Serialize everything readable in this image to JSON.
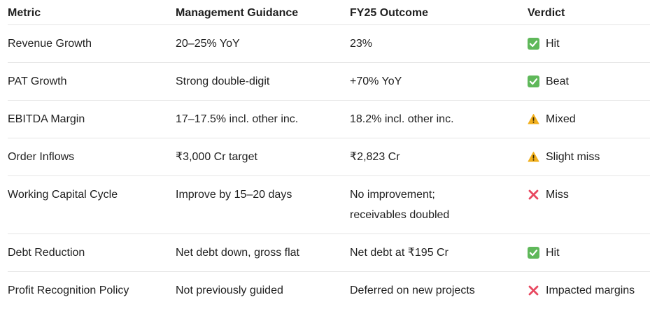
{
  "columns": [
    "Metric",
    "Management Guidance",
    "FY25 Outcome",
    "Verdict"
  ],
  "rows": [
    {
      "metric": "Revenue Growth",
      "guidance": "20–25% YoY",
      "outcome": [
        "23%"
      ],
      "verdict_icon": "check-icon",
      "verdict": "Hit"
    },
    {
      "metric": "PAT Growth",
      "guidance": "Strong double-digit",
      "outcome": [
        "+70% YoY"
      ],
      "verdict_icon": "check-icon",
      "verdict": "Beat"
    },
    {
      "metric": "EBITDA Margin",
      "guidance": "17–17.5% incl. other inc.",
      "outcome": [
        "18.2% incl. other inc."
      ],
      "verdict_icon": "warning-icon",
      "verdict": "Mixed"
    },
    {
      "metric": "Order Inflows",
      "guidance": "₹3,000 Cr target",
      "outcome": [
        "₹2,823 Cr"
      ],
      "verdict_icon": "warning-icon",
      "verdict": "Slight miss"
    },
    {
      "metric": "Working Capital Cycle",
      "guidance": "Improve by 15–20 days",
      "outcome": [
        "No improvement;",
        "receivables doubled"
      ],
      "verdict_icon": "cross-icon",
      "verdict": "Miss"
    },
    {
      "metric": "Debt Reduction",
      "guidance": "Net debt down, gross flat",
      "outcome": [
        "Net debt at ₹195 Cr"
      ],
      "verdict_icon": "check-icon",
      "verdict": "Hit"
    },
    {
      "metric": "Profit Recognition Policy",
      "guidance": "Not previously guided",
      "outcome": [
        "Deferred on new projects"
      ],
      "verdict_icon": "cross-icon",
      "verdict": "Impacted margins"
    }
  ],
  "colors": {
    "check": "#5fb85a",
    "warning": "#f2b01e",
    "cross": "#e8475f",
    "divider": "#e6e6e6"
  }
}
